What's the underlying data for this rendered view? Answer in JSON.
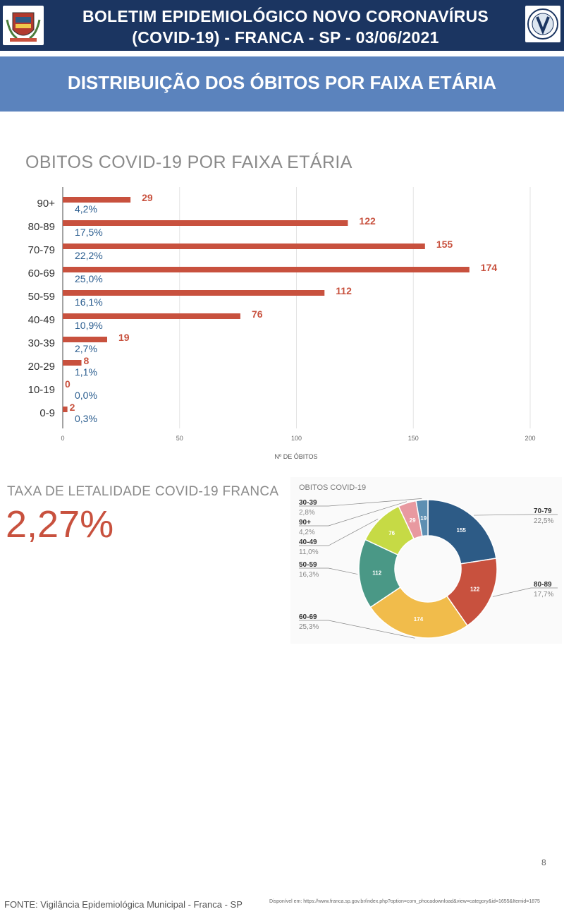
{
  "header": {
    "title_line1": "BOLETIM EPIDEMIOLÓGICO NOVO CORONAVÍRUS",
    "title_line2": "(COVID-19) - FRANCA - SP - 03/06/2021",
    "section_title": "DISTRIBUIÇÃO DOS ÓBITOS POR FAIXA ETÁRIA"
  },
  "colors": {
    "header_bg": "#1b3561",
    "section_bg": "#5b83bd",
    "bar": "#c8513e",
    "percent_text": "#2a5d8f"
  },
  "chart_data": [
    {
      "type": "bar",
      "orientation": "horizontal",
      "title": "OBITOS COVID-19 POR FAIXA ETÁRIA",
      "xlabel": "Nº DE ÓBITOS",
      "ylabel": "",
      "categories": [
        "90+",
        "80-89",
        "70-79",
        "60-69",
        "50-59",
        "40-49",
        "30-39",
        "20-29",
        "10-19",
        "0-9"
      ],
      "values": [
        29,
        122,
        155,
        174,
        112,
        76,
        19,
        8,
        0,
        2
      ],
      "percent_labels": [
        "4,2%",
        "17,5%",
        "22,2%",
        "25,0%",
        "16,1%",
        "10,9%",
        "2,7%",
        "1,1%",
        "0,0%",
        "0,3%"
      ],
      "xlim": [
        0,
        200
      ],
      "xticks": [
        "0",
        "50",
        "100",
        "150",
        "200"
      ],
      "grid": true
    },
    {
      "type": "pie",
      "donut": true,
      "title": "OBITOS COVID-19",
      "slices": [
        {
          "label": "70-79",
          "value": 155,
          "percent": "22,5%",
          "color": "#2d5b86"
        },
        {
          "label": "80-89",
          "value": 122,
          "percent": "17,7%",
          "color": "#c8513e"
        },
        {
          "label": "60-69",
          "value": 174,
          "percent": "25,3%",
          "color": "#f1bc4b"
        },
        {
          "label": "50-59",
          "value": 112,
          "percent": "16,3%",
          "color": "#4a9886"
        },
        {
          "label": "40-49",
          "value": 76,
          "percent": "11,0%",
          "color": "#c6da45"
        },
        {
          "label": "90+",
          "value": 29,
          "percent": "4,2%",
          "color": "#e899a0"
        },
        {
          "label": "30-39",
          "value": 19,
          "percent": "2,8%",
          "color": "#5e8fb2"
        }
      ]
    }
  ],
  "lethality": {
    "label": "TAXA DE LETALIDADE COVID-19 FRANCA",
    "value": "2,27%"
  },
  "footer": {
    "page_number": "8",
    "source": "FONTE: Vigilância Epidemiológica Municipal - Franca - SP",
    "link": "Disponível em: https://www.franca.sp.gov.br/index.php?option=com_phocadownload&view=category&id=1655&Itemid=1875"
  }
}
